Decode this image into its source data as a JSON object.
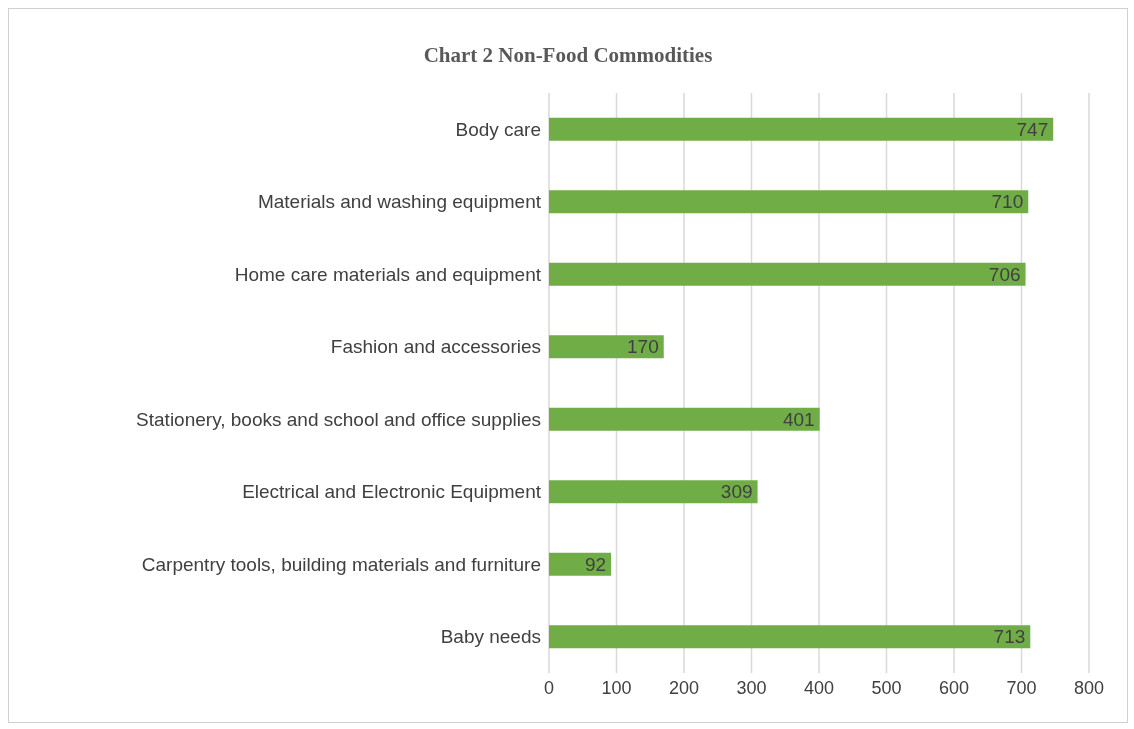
{
  "chart_data": {
    "type": "bar",
    "orientation": "horizontal",
    "title": "Chart 2 Non-Food Commodities",
    "categories": [
      "Body care",
      "Materials and washing equipment",
      "Home care materials and equipment",
      "Fashion and accessories",
      "Stationery, books and school and office supplies",
      "Electrical and Electronic Equipment",
      "Carpentry tools, building materials and furniture",
      "Baby needs"
    ],
    "values": [
      747,
      710,
      706,
      170,
      401,
      309,
      92,
      713
    ],
    "color": "#70ad47",
    "xlim": [
      0,
      800
    ],
    "xticks": [
      0,
      100,
      200,
      300,
      400,
      500,
      600,
      700,
      800
    ],
    "grid": "x",
    "data_labels": true
  }
}
